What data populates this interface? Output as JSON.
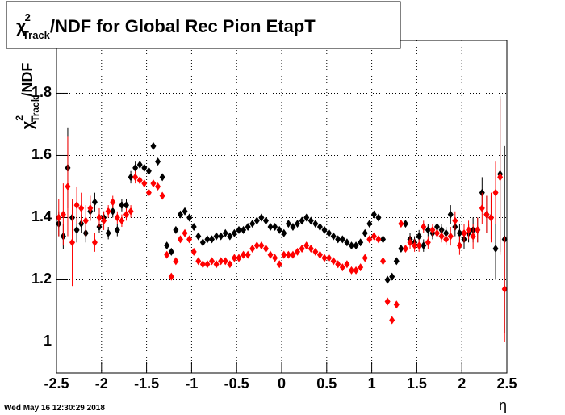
{
  "chart_data": {
    "type": "scatter",
    "title": {
      "symbol": "χ",
      "sup": "2",
      "sub": "Track",
      "text": "/NDF for Global Rec Pion EtapT"
    },
    "y_label": {
      "symbol": "χ",
      "sup": "2",
      "sub": "Track",
      "text": "/NDF"
    },
    "x_label": "η",
    "date": "Wed May 16 12:30:29 2018",
    "xlim": [
      -2.5,
      2.5
    ],
    "ylim": [
      0.9,
      1.97
    ],
    "xticks": [
      -2.5,
      -2,
      -1.5,
      -1,
      -0.5,
      0,
      0.5,
      1,
      1.5,
      2,
      2.5
    ],
    "yticks": [
      1,
      1.2,
      1.4,
      1.6,
      1.8
    ],
    "grid": true,
    "x": [
      -2.475,
      -2.425,
      -2.375,
      -2.325,
      -2.275,
      -2.225,
      -2.175,
      -2.125,
      -2.075,
      -2.025,
      -1.975,
      -1.925,
      -1.875,
      -1.825,
      -1.775,
      -1.725,
      -1.675,
      -1.625,
      -1.575,
      -1.525,
      -1.475,
      -1.425,
      -1.375,
      -1.325,
      -1.275,
      -1.225,
      -1.175,
      -1.125,
      -1.075,
      -1.025,
      -0.975,
      -0.925,
      -0.875,
      -0.825,
      -0.775,
      -0.725,
      -0.675,
      -0.625,
      -0.575,
      -0.525,
      -0.475,
      -0.425,
      -0.375,
      -0.325,
      -0.275,
      -0.225,
      -0.175,
      -0.125,
      -0.075,
      -0.025,
      0.025,
      0.075,
      0.125,
      0.175,
      0.225,
      0.275,
      0.325,
      0.375,
      0.425,
      0.475,
      0.525,
      0.575,
      0.625,
      0.675,
      0.725,
      0.775,
      0.825,
      0.875,
      0.925,
      0.975,
      1.025,
      1.075,
      1.125,
      1.175,
      1.225,
      1.275,
      1.325,
      1.375,
      1.425,
      1.475,
      1.525,
      1.575,
      1.625,
      1.675,
      1.725,
      1.775,
      1.825,
      1.875,
      1.925,
      1.975,
      2.025,
      2.075,
      2.125,
      2.175,
      2.225,
      2.275,
      2.325,
      2.375,
      2.425,
      2.475
    ],
    "series": [
      {
        "color": "#000000",
        "values": [
          1.38,
          1.34,
          1.56,
          1.4,
          1.36,
          1.38,
          1.35,
          1.42,
          1.45,
          1.37,
          1.4,
          1.35,
          1.42,
          1.36,
          1.44,
          1.44,
          1.53,
          1.56,
          1.57,
          1.56,
          1.55,
          1.63,
          1.58,
          1.53,
          1.31,
          1.29,
          1.36,
          1.41,
          1.42,
          1.4,
          1.37,
          1.34,
          1.32,
          1.33,
          1.33,
          1.34,
          1.34,
          1.35,
          1.34,
          1.35,
          1.36,
          1.36,
          1.37,
          1.38,
          1.39,
          1.4,
          1.39,
          1.37,
          1.37,
          1.36,
          1.35,
          1.38,
          1.37,
          1.38,
          1.39,
          1.4,
          1.39,
          1.38,
          1.37,
          1.36,
          1.35,
          1.34,
          1.33,
          1.33,
          1.32,
          1.31,
          1.31,
          1.32,
          1.35,
          1.38,
          1.41,
          1.4,
          1.33,
          1.2,
          1.21,
          1.26,
          1.3,
          1.38,
          1.33,
          1.32,
          1.34,
          1.31,
          1.36,
          1.35,
          1.37,
          1.36,
          1.35,
          1.41,
          1.37,
          1.35,
          1.33,
          1.35,
          1.36,
          1.36,
          1.48,
          1.41,
          1.4,
          1.3,
          1.54,
          1.33
        ],
        "errors": [
          0.04,
          0.04,
          0.13,
          0.05,
          0.04,
          0.03,
          0.03,
          0.03,
          0.03,
          0.02,
          0.02,
          0.02,
          0.02,
          0.02,
          0.02,
          0.02,
          0.02,
          0.02,
          0.01,
          0.01,
          0.01,
          0.01,
          0.01,
          0.01,
          0.01,
          0.01,
          0.01,
          0.01,
          0.01,
          0.01,
          0.01,
          0.01,
          0.01,
          0.01,
          0.01,
          0.01,
          0.01,
          0.01,
          0.01,
          0.01,
          0.01,
          0.01,
          0.01,
          0.01,
          0.01,
          0.01,
          0.01,
          0.01,
          0.01,
          0.01,
          0.01,
          0.01,
          0.01,
          0.01,
          0.01,
          0.01,
          0.01,
          0.01,
          0.01,
          0.01,
          0.01,
          0.01,
          0.01,
          0.01,
          0.01,
          0.01,
          0.01,
          0.01,
          0.01,
          0.01,
          0.01,
          0.01,
          0.01,
          0.01,
          0.01,
          0.01,
          0.01,
          0.01,
          0.02,
          0.02,
          0.02,
          0.02,
          0.02,
          0.02,
          0.02,
          0.02,
          0.02,
          0.03,
          0.03,
          0.03,
          0.03,
          0.03,
          0.04,
          0.04,
          0.05,
          0.06,
          0.07,
          0.1,
          0.25,
          0.3
        ]
      },
      {
        "color": "#ff0000",
        "values": [
          1.4,
          1.41,
          1.5,
          1.32,
          1.44,
          1.43,
          1.39,
          1.43,
          1.32,
          1.4,
          1.39,
          1.42,
          1.45,
          1.4,
          1.39,
          1.41,
          1.42,
          1.53,
          1.52,
          1.51,
          1.48,
          1.51,
          1.5,
          1.47,
          1.28,
          1.21,
          1.26,
          1.33,
          1.35,
          1.33,
          1.29,
          1.26,
          1.25,
          1.25,
          1.26,
          1.25,
          1.26,
          1.26,
          1.25,
          1.27,
          1.27,
          1.28,
          1.28,
          1.3,
          1.31,
          1.31,
          1.3,
          1.28,
          1.27,
          1.25,
          1.28,
          1.28,
          1.28,
          1.29,
          1.3,
          1.31,
          1.3,
          1.29,
          1.28,
          1.27,
          1.27,
          1.26,
          1.25,
          1.24,
          1.25,
          1.23,
          1.23,
          1.24,
          1.27,
          1.33,
          1.34,
          1.33,
          1.26,
          1.13,
          1.07,
          1.12,
          1.38,
          1.3,
          1.32,
          1.31,
          1.31,
          1.37,
          1.32,
          1.36,
          1.35,
          1.34,
          1.33,
          1.34,
          1.39,
          1.31,
          1.35,
          1.36,
          1.34,
          1.36,
          1.43,
          1.41,
          1.4,
          1.48,
          1.53,
          1.17
        ],
        "errors": [
          0.06,
          0.1,
          0.16,
          0.14,
          0.06,
          0.05,
          0.05,
          0.04,
          0.03,
          0.03,
          0.03,
          0.02,
          0.02,
          0.02,
          0.02,
          0.02,
          0.02,
          0.02,
          0.01,
          0.01,
          0.01,
          0.01,
          0.01,
          0.01,
          0.01,
          0.01,
          0.01,
          0.01,
          0.01,
          0.01,
          0.01,
          0.01,
          0.01,
          0.01,
          0.01,
          0.01,
          0.01,
          0.01,
          0.01,
          0.01,
          0.01,
          0.01,
          0.01,
          0.01,
          0.01,
          0.01,
          0.01,
          0.01,
          0.01,
          0.01,
          0.01,
          0.01,
          0.01,
          0.01,
          0.01,
          0.01,
          0.01,
          0.01,
          0.01,
          0.01,
          0.01,
          0.01,
          0.01,
          0.01,
          0.01,
          0.01,
          0.01,
          0.01,
          0.01,
          0.01,
          0.01,
          0.01,
          0.01,
          0.01,
          0.01,
          0.01,
          0.01,
          0.01,
          0.02,
          0.02,
          0.02,
          0.02,
          0.02,
          0.02,
          0.02,
          0.02,
          0.02,
          0.03,
          0.03,
          0.03,
          0.03,
          0.03,
          0.04,
          0.04,
          0.05,
          0.06,
          0.08,
          0.1,
          0.25,
          0.17
        ]
      }
    ]
  }
}
